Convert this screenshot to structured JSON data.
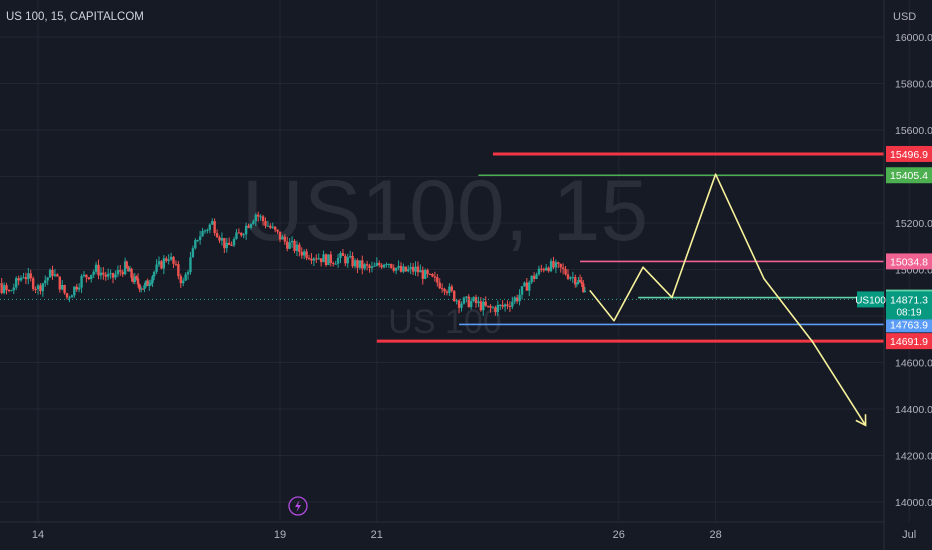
{
  "header": {
    "symbol_line": "US 100, 15, CAPITALCOM",
    "currency": "USD"
  },
  "watermark": {
    "big": "US100, 15",
    "small": "US 100"
  },
  "colors": {
    "background": "#161a25",
    "grid": "#232632",
    "text": "#b2b5be",
    "up": "#26a69a",
    "down": "#ef5350",
    "red_level": "#f23645",
    "green_level": "#4caf50",
    "pink_level": "#f06292",
    "teal_level": "#5fd3a5",
    "blue_level": "#5b9cf6",
    "projection": "#f7f29a"
  },
  "chart_data": {
    "type": "candlestick",
    "y_axis": {
      "ticks": [
        14000,
        14200,
        14400,
        14600,
        14800,
        15000,
        15200,
        15400,
        15600,
        15800,
        16000
      ],
      "tick_labels": [
        "14000.0",
        "14200.0",
        "14400.0",
        "14600.0",
        "14800.0",
        "15000.0",
        "15200.0",
        "15400.0",
        "15600.0",
        "15800.0",
        "16000.0"
      ]
    },
    "x_axis": {
      "ticks": [
        "14",
        "19",
        "21",
        "26",
        "28",
        "Jul"
      ],
      "tick_positions": [
        14,
        19,
        21,
        26,
        28,
        32
      ]
    },
    "price_series": [
      [
        12.5,
        14810
      ],
      [
        12.8,
        14860
      ],
      [
        13.1,
        14940
      ],
      [
        13.4,
        14900
      ],
      [
        13.7,
        14980
      ],
      [
        14.0,
        14920
      ],
      [
        14.3,
        14990
      ],
      [
        14.6,
        14880
      ],
      [
        14.9,
        14960
      ],
      [
        15.2,
        15000
      ],
      [
        15.5,
        14960
      ],
      [
        15.8,
        15010
      ],
      [
        16.0,
        14950
      ],
      [
        16.2,
        14920
      ],
      [
        16.4,
        14990
      ],
      [
        16.7,
        15060
      ],
      [
        17.0,
        14940
      ],
      [
        17.3,
        15140
      ],
      [
        17.6,
        15200
      ],
      [
        17.9,
        15090
      ],
      [
        18.2,
        15160
      ],
      [
        18.5,
        15240
      ],
      [
        18.8,
        15180
      ],
      [
        19.1,
        15120
      ],
      [
        19.4,
        15080
      ],
      [
        19.7,
        15060
      ],
      [
        20.0,
        15040
      ],
      [
        20.3,
        15050
      ],
      [
        20.6,
        15020
      ],
      [
        20.9,
        15000
      ],
      [
        21.2,
        15040
      ],
      [
        21.5,
        14990
      ],
      [
        21.8,
        15000
      ],
      [
        22.1,
        14960
      ],
      [
        22.4,
        14930
      ],
      [
        22.7,
        14860
      ],
      [
        23.0,
        14860
      ],
      [
        23.3,
        14830
      ],
      [
        23.6,
        14840
      ],
      [
        23.9,
        14880
      ],
      [
        24.2,
        14960
      ],
      [
        24.5,
        15020
      ],
      [
        24.8,
        15000
      ],
      [
        25.1,
        14960
      ],
      [
        25.3,
        14920
      ]
    ],
    "price_range": [
      14780,
      15270
    ],
    "levels": [
      {
        "name": "resistance-red-top",
        "value": 15496.9,
        "label": "15496.9",
        "color": "#f23645",
        "x_start": 23.4,
        "x_end": 40.5
      },
      {
        "name": "resistance-green",
        "value": 15405.4,
        "label": "15405.4",
        "color": "#4caf50",
        "x_start": 23.1,
        "x_end": 40.5
      },
      {
        "name": "pink-level",
        "value": 15034.8,
        "label": "15034.8",
        "color": "#f06292",
        "x_start": 25.2,
        "x_end": 40.5
      },
      {
        "name": "teal-level",
        "value": 14879.2,
        "label": "14879.2",
        "color": "#5fd3a5",
        "x_start": 26.4,
        "x_end": 40.5
      },
      {
        "name": "blue-level",
        "value": 14763.9,
        "label": "14763.9",
        "color": "#5b9cf6",
        "x_start": 22.7,
        "x_end": 40.5
      },
      {
        "name": "support-red-bottom",
        "value": 14691.9,
        "label": "14691.9",
        "color": "#f23645",
        "x_start": 21.0,
        "x_end": 40.5
      }
    ],
    "current_price": {
      "symbol": "US100",
      "value": 14871.3,
      "label": "14871.3",
      "countdown": "08:19"
    },
    "projection_path": [
      [
        25.4,
        14910
      ],
      [
        25.9,
        14780
      ],
      [
        26.5,
        15010
      ],
      [
        27.1,
        14880
      ],
      [
        28.0,
        15410
      ],
      [
        29.0,
        14960
      ],
      [
        30.0,
        14690
      ],
      [
        31.1,
        14330
      ]
    ],
    "projection_arrow": {
      "tip": [
        31.1,
        14330
      ]
    }
  },
  "marker": {
    "icon": "lightning-icon"
  }
}
